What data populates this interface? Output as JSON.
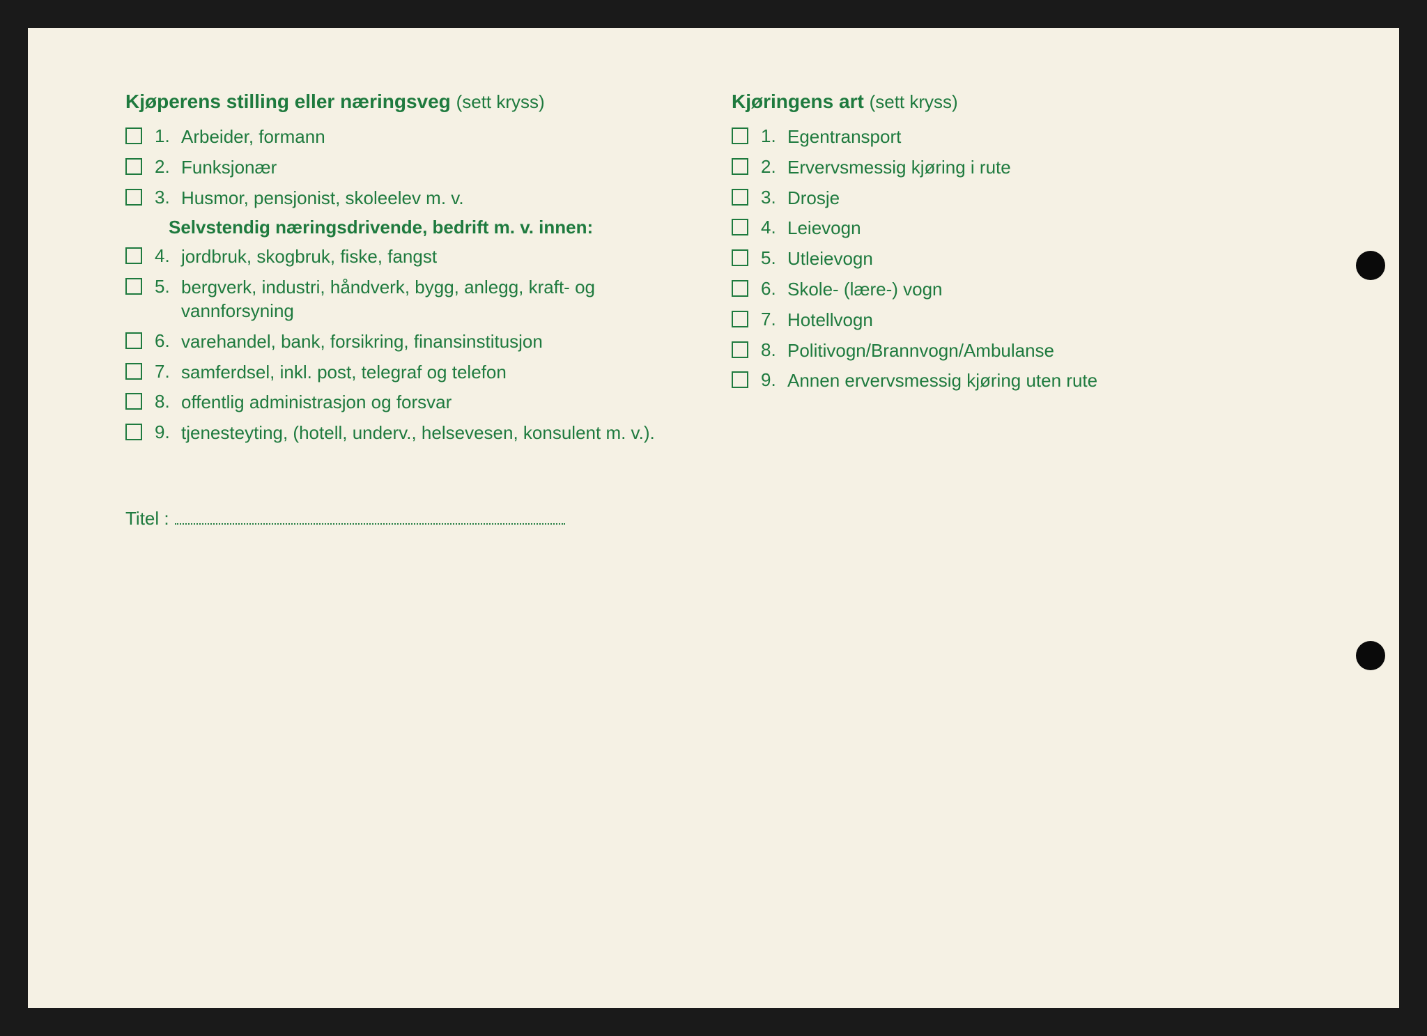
{
  "colors": {
    "text": "#1e7a3e",
    "paper": "#f5f1e4",
    "background": "#1a1a1a"
  },
  "typography": {
    "header_fontsize": 28,
    "body_fontsize": 26,
    "font_family": "Arial"
  },
  "left": {
    "header": "Kjøperens stilling eller næringsveg",
    "header_note": "(sett kryss)",
    "items_a": [
      {
        "num": "1.",
        "text": "Arbeider, formann"
      },
      {
        "num": "2.",
        "text": "Funksjonær"
      },
      {
        "num": "3.",
        "text": "Husmor, pensjonist, skoleelev m. v."
      }
    ],
    "sub_header": "Selvstendig næringsdrivende, bedrift m. v. innen:",
    "items_b": [
      {
        "num": "4.",
        "text": "jordbruk, skogbruk, fiske, fangst"
      },
      {
        "num": "5.",
        "text": "bergverk, industri, håndverk, bygg, anlegg, kraft- og vannforsyning"
      },
      {
        "num": "6.",
        "text": "varehandel, bank, forsikring, finansinstitusjon"
      },
      {
        "num": "7.",
        "text": "samferdsel, inkl. post, telegraf og telefon"
      },
      {
        "num": "8.",
        "text": "offentlig administrasjon og forsvar"
      },
      {
        "num": "9.",
        "text": "tjenesteyting, (hotell, underv., helsevesen, konsulent m. v.)."
      }
    ]
  },
  "right": {
    "header": "Kjøringens art",
    "header_note": "(sett kryss)",
    "items": [
      {
        "num": "1.",
        "text": "Egentransport"
      },
      {
        "num": "2.",
        "text": "Ervervsmessig kjøring i rute"
      },
      {
        "num": "3.",
        "text": "Drosje"
      },
      {
        "num": "4.",
        "text": "Leievogn"
      },
      {
        "num": "5.",
        "text": "Utleievogn"
      },
      {
        "num": "6.",
        "text": "Skole- (lære-) vogn"
      },
      {
        "num": "7.",
        "text": "Hotellvogn"
      },
      {
        "num": "8.",
        "text": "Politivogn/Brannvogn/Ambulanse"
      },
      {
        "num": "9.",
        "text": "Annen ervervsmessig kjøring uten rute"
      }
    ]
  },
  "title_label": "Titel :"
}
